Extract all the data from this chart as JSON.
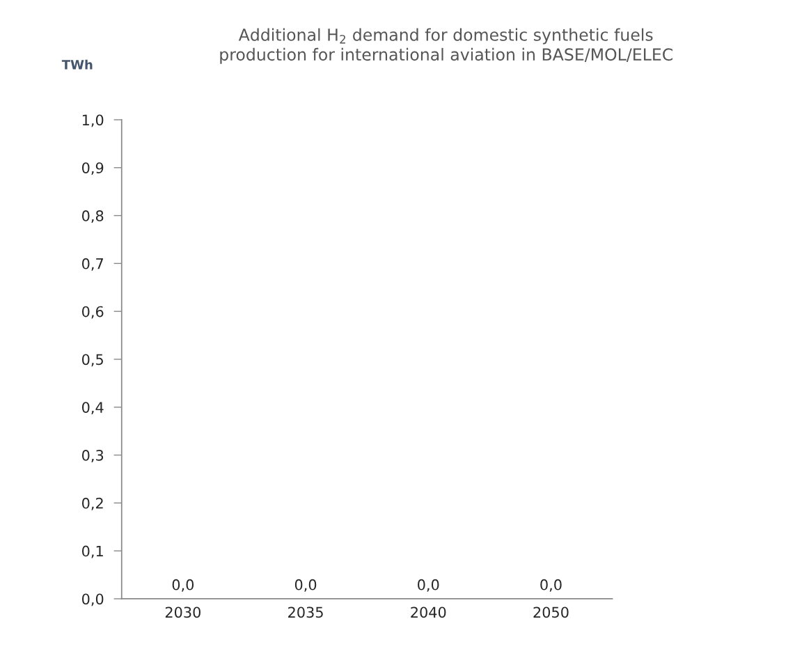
{
  "chart_data": {
    "type": "bar",
    "title": "Additional H$_{2}$ demand for domestic synthetic fuels\nproduction for international aviation in BASE/MOL/ELEC",
    "ylabel": "TWh",
    "categories": [
      "2030",
      "2035",
      "2040",
      "2050"
    ],
    "values": [
      0,
      0,
      0,
      0
    ],
    "value_labels": [
      "0,0",
      "0,0",
      "0,0",
      "0,0"
    ],
    "ylim": [
      0,
      1
    ],
    "yticks": [
      {
        "value": 0,
        "label": "0,0"
      },
      {
        "value": 0.1,
        "label": "0,1"
      },
      {
        "value": 0.2,
        "label": "0,2"
      },
      {
        "value": 0.3,
        "label": "0,3"
      },
      {
        "value": 0.4,
        "label": "0,4"
      },
      {
        "value": 0.5,
        "label": "0,5"
      },
      {
        "value": 0.6,
        "label": "0,6"
      },
      {
        "value": 0.7,
        "label": "0,7"
      },
      {
        "value": 0.8,
        "label": "0,8"
      },
      {
        "value": 0.9,
        "label": "0,9"
      },
      {
        "value": 1,
        "label": "1,0"
      }
    ],
    "grid": false,
    "legend": false
  }
}
